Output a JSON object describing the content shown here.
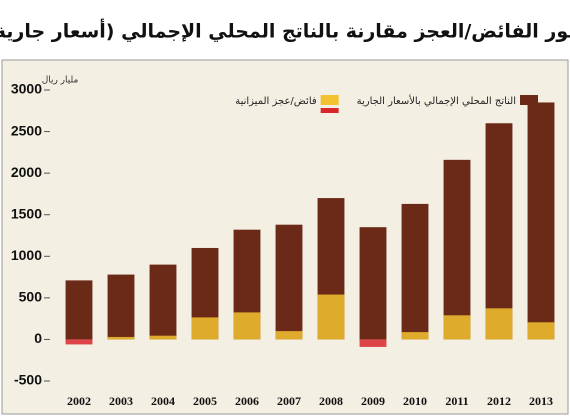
{
  "chart_data": {
    "type": "bar",
    "title": "تطور الفائض/العجز مقارنة بالناتج المحلي الإجمالي (أسعار جارية)",
    "unit_label": "مليار ريال",
    "categories": [
      "2002",
      "2003",
      "2004",
      "2005",
      "2006",
      "2007",
      "2008",
      "2009",
      "2010",
      "2011",
      "2012",
      "2013"
    ],
    "series": [
      {
        "name": "الناتج المحلي الإجمالي بالأسعار الجارية",
        "color": "#6b2a18",
        "values": [
          710,
          780,
          900,
          1100,
          1320,
          1380,
          1700,
          1350,
          1630,
          2160,
          2600,
          2850
        ]
      },
      {
        "name": "فائض/عجز الميزانية",
        "color": "#f2c230",
        "negative_color": "#d8262b",
        "values": [
          -60,
          30,
          45,
          265,
          325,
          100,
          540,
          -90,
          88,
          290,
          374,
          206
        ]
      }
    ],
    "ylim": [
      -500,
      3000
    ],
    "yticks": [
      -500,
      0,
      500,
      1000,
      1500,
      2000,
      2500,
      3000
    ],
    "legend": "top-right",
    "grid": false
  }
}
